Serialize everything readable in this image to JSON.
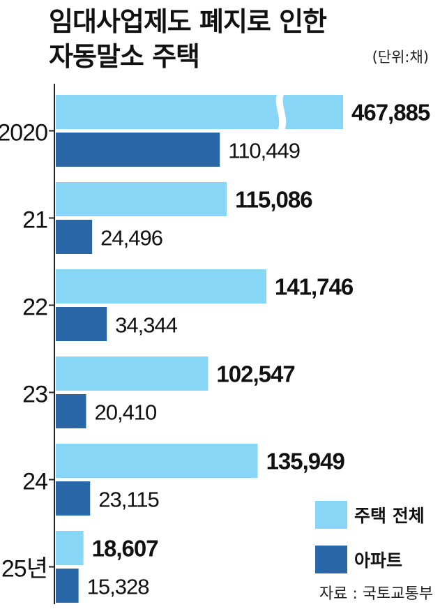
{
  "title": {
    "line1": "임대사업제도 폐지로 인한",
    "line2": "자동말소 주택"
  },
  "unit": "(단위:채)",
  "source": "자료 : 국토교통부",
  "legend": [
    {
      "label": "주택 전체",
      "color": "#87d6f5"
    },
    {
      "label": "아파트",
      "color": "#2a67a8"
    }
  ],
  "chart_data": {
    "type": "bar",
    "orientation": "horizontal",
    "categories": [
      "2020",
      "21",
      "22",
      "23",
      "24",
      "25년"
    ],
    "series": [
      {
        "name": "주택 전체",
        "color": "#87d6f5",
        "values": [
          467885,
          115086,
          141746,
          102547,
          135949,
          18607
        ],
        "labels": [
          "467,885",
          "115,086",
          "141,746",
          "102,547",
          "135,949",
          "18,607"
        ]
      },
      {
        "name": "아파트",
        "color": "#2a67a8",
        "values": [
          110449,
          24496,
          34344,
          20410,
          23115,
          15328
        ],
        "labels": [
          "110,449",
          "24,496",
          "34,344",
          "20,410",
          "23,115",
          "15,328"
        ]
      }
    ],
    "axis_break": {
      "category": "2020",
      "series": "주택 전체"
    }
  }
}
